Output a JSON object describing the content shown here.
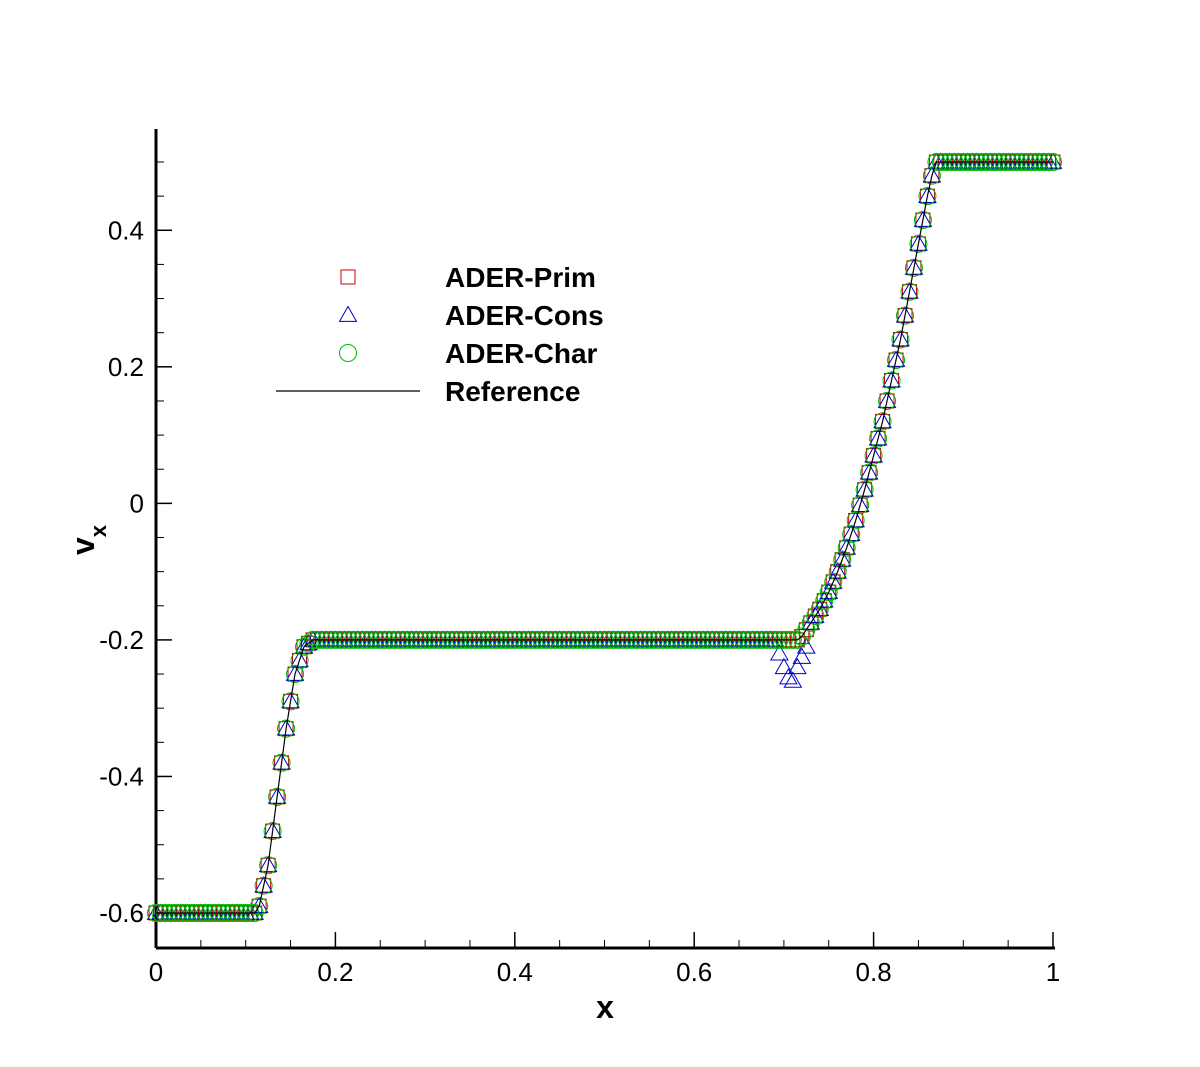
{
  "chart_data": {
    "type": "scatter",
    "title": "",
    "xlabel": "x",
    "ylabel": "v",
    "ylabel_subscript": "x",
    "xlim": [
      0,
      1
    ],
    "ylim": [
      -0.6,
      0.5
    ],
    "xticks": [
      0,
      0.2,
      0.4,
      0.6,
      0.8,
      1
    ],
    "xtick_labels": [
      "0",
      "0.2",
      "0.4",
      "0.6",
      "0.8",
      "1"
    ],
    "yticks": [
      -0.6,
      -0.4,
      -0.2,
      0,
      0.2,
      0.4
    ],
    "ytick_labels": [
      "-0.6",
      "-0.4",
      "-0.2",
      "0",
      "0.2",
      "0.4"
    ],
    "grid": false,
    "legend_position": "top-left",
    "reference_profile": {
      "x": [
        0,
        0.11,
        0.115,
        0.125,
        0.135,
        0.145,
        0.155,
        0.165,
        0.175,
        0.715,
        0.72,
        0.73,
        0.74,
        0.75,
        0.76,
        0.77,
        0.78,
        0.79,
        0.8,
        0.81,
        0.82,
        0.83,
        0.84,
        0.85,
        0.86,
        0.865,
        0.87,
        1.0
      ],
      "y": [
        -0.6,
        -0.6,
        -0.59,
        -0.53,
        -0.43,
        -0.33,
        -0.25,
        -0.21,
        -0.2,
        -0.2,
        -0.195,
        -0.175,
        -0.155,
        -0.13,
        -0.1,
        -0.065,
        -0.025,
        0.02,
        0.07,
        0.12,
        0.18,
        0.24,
        0.31,
        0.38,
        0.45,
        0.48,
        0.5,
        0.5
      ]
    },
    "series": [
      {
        "name": "ADER-Prim",
        "marker": "square",
        "color": "#cc0000",
        "sample_step": 0.005
      },
      {
        "name": "ADER-Cons",
        "marker": "triangle",
        "color": "#0000cc",
        "sample_step": 0.005,
        "overshoot": {
          "x": [
            0.695,
            0.7,
            0.705,
            0.71,
            0.715,
            0.72,
            0.725
          ],
          "y": [
            -0.22,
            -0.24,
            -0.255,
            -0.26,
            -0.24,
            -0.225,
            -0.21
          ]
        }
      },
      {
        "name": "ADER-Char",
        "marker": "circle",
        "color": "#00bb00",
        "sample_step": 0.005
      },
      {
        "name": "Reference",
        "marker": "line",
        "color": "#000000"
      }
    ]
  }
}
